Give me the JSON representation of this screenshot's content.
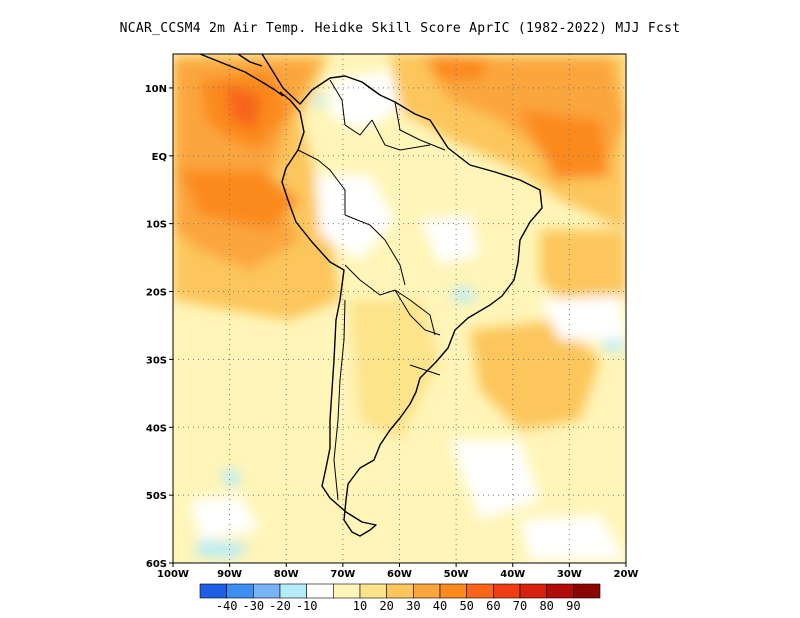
{
  "title": "NCAR_CCSM4  2m Air Temp. Heidke Skill Score AprIC (1982-2022) MJJ Fcst",
  "map": {
    "lon_range": [
      -100,
      -20
    ],
    "lat_range": [
      -60,
      15
    ],
    "lat_ticks": [
      {
        "value": 10,
        "label": "10N"
      },
      {
        "value": 0,
        "label": "EQ"
      },
      {
        "value": -10,
        "label": "10S"
      },
      {
        "value": -20,
        "label": "20S"
      },
      {
        "value": -30,
        "label": "30S"
      },
      {
        "value": -40,
        "label": "40S"
      },
      {
        "value": -50,
        "label": "50S"
      },
      {
        "value": -60,
        "label": "60S"
      }
    ],
    "lon_ticks": [
      {
        "value": -100,
        "label": "100W"
      },
      {
        "value": -90,
        "label": "90W"
      },
      {
        "value": -80,
        "label": "80W"
      },
      {
        "value": -70,
        "label": "70W"
      },
      {
        "value": -60,
        "label": "60W"
      },
      {
        "value": -50,
        "label": "50W"
      },
      {
        "value": -40,
        "label": "40W"
      },
      {
        "value": -30,
        "label": "30W"
      },
      {
        "value": -20,
        "label": "20W"
      }
    ],
    "grid": "dotted",
    "background_color": "#fff5b8"
  },
  "colorbar": {
    "colors": [
      "#1f5fe6",
      "#3c8ef0",
      "#78b4f5",
      "#b4ecfa",
      "#ffffff",
      "#fff5b8",
      "#fde38a",
      "#fcc65c",
      "#fba63c",
      "#fb8a1e",
      "#f8641a",
      "#ef3e14",
      "#d8200e",
      "#b20c08",
      "#8c0505"
    ],
    "labels": [
      "-40",
      "-30",
      "-20",
      "-10",
      "10",
      "20",
      "30",
      "40",
      "50",
      "60",
      "70",
      "80",
      "90"
    ]
  }
}
